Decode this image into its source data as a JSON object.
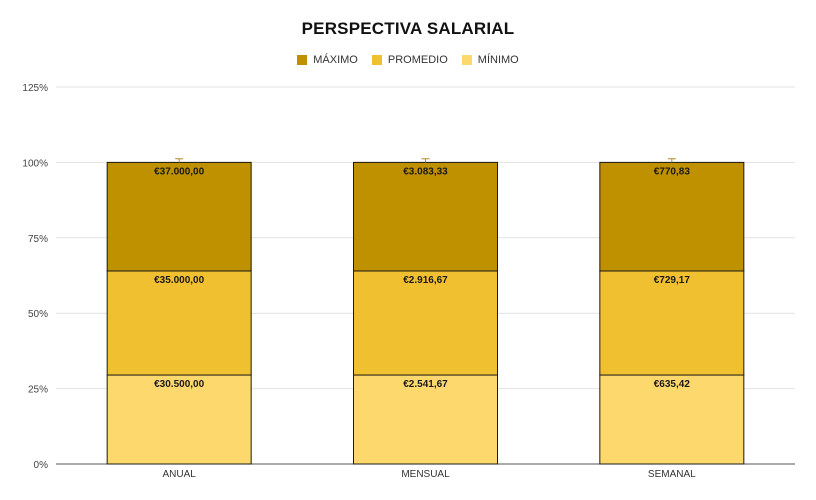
{
  "chart_data": {
    "type": "bar",
    "stacked": true,
    "normalized": true,
    "title": "PERSPECTIVA SALARIAL",
    "categories": [
      "ANUAL",
      "MENSUAL",
      "SEMANAL"
    ],
    "yticks": [
      "0%",
      "25%",
      "50%",
      "75%",
      "100%",
      "125%"
    ],
    "ylim": [
      0,
      1.25
    ],
    "legend_position": "top",
    "series": [
      {
        "name": "MÍNIMO",
        "color": "#fdd96d",
        "share": [
          0.295,
          0.295,
          0.295
        ],
        "labels": [
          "€30.500,00",
          "€2.541,67",
          "€635,42"
        ]
      },
      {
        "name": "PROMEDIO",
        "color": "#f0c030",
        "share": [
          0.345,
          0.345,
          0.345
        ],
        "labels": [
          "€35.000,00",
          "€2.916,67",
          "€729,17"
        ]
      },
      {
        "name": "MÁXIMO",
        "color": "#bf9000",
        "share": [
          0.36,
          0.36,
          0.36
        ],
        "labels": [
          "€37.000,00",
          "€3.083,33",
          "€770,83"
        ]
      }
    ],
    "error_bar_share": 0.012
  }
}
